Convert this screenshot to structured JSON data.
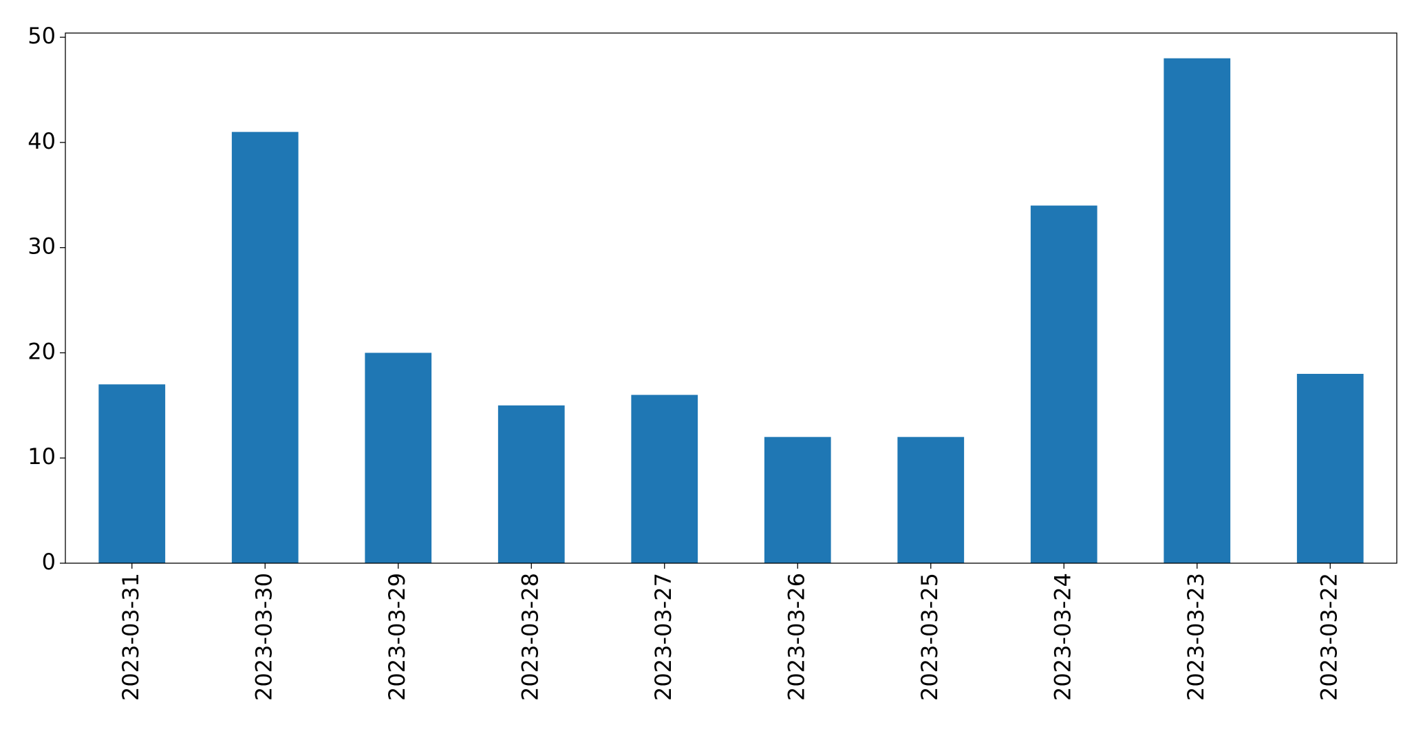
{
  "chart_data": {
    "type": "bar",
    "categories": [
      "2023-03-31",
      "2023-03-30",
      "2023-03-29",
      "2023-03-28",
      "2023-03-27",
      "2023-03-26",
      "2023-03-25",
      "2023-03-24",
      "2023-03-23",
      "2023-03-22"
    ],
    "values": [
      17,
      41,
      20,
      15,
      16,
      12,
      12,
      34,
      48,
      18
    ],
    "color": "#1f77b4",
    "ylim": [
      0,
      50.4
    ],
    "yticks": [
      0,
      10,
      20,
      30,
      40,
      50
    ],
    "grid": false
  }
}
